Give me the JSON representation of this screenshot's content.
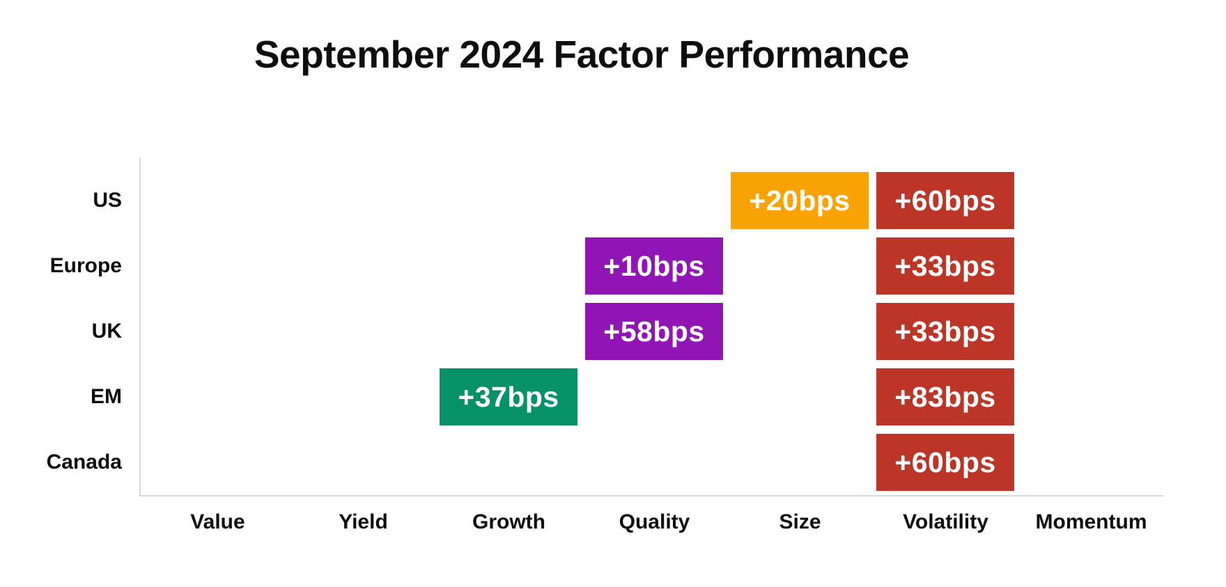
{
  "title": "September 2024 Factor Performance",
  "colors": {
    "orange": "#FAA307",
    "red": "#BD3526",
    "purple": "#9115B5",
    "green": "#069167",
    "axis": "#D9D9D9",
    "label_text": "#0E0E0E",
    "cell_text": "#FFFFFF",
    "background": "#FFFFFF"
  },
  "chart_data": {
    "type": "heatmap",
    "title": "September 2024 Factor Performance",
    "rows": [
      "US",
      "Europe",
      "UK",
      "EM",
      "Canada"
    ],
    "columns": [
      "Value",
      "Yield",
      "Growth",
      "Quality",
      "Size",
      "Volatility",
      "Momentum"
    ],
    "cells": [
      {
        "row": "US",
        "column": "Size",
        "label": "+20bps",
        "value_bps": 20,
        "color": "#FAA307"
      },
      {
        "row": "US",
        "column": "Volatility",
        "label": "+60bps",
        "value_bps": 60,
        "color": "#BD3526"
      },
      {
        "row": "Europe",
        "column": "Quality",
        "label": "+10bps",
        "value_bps": 10,
        "color": "#9115B5"
      },
      {
        "row": "Europe",
        "column": "Volatility",
        "label": "+33bps",
        "value_bps": 33,
        "color": "#BD3526"
      },
      {
        "row": "UK",
        "column": "Quality",
        "label": "+58bps",
        "value_bps": 58,
        "color": "#9115B5"
      },
      {
        "row": "UK",
        "column": "Volatility",
        "label": "+33bps",
        "value_bps": 33,
        "color": "#BD3526"
      },
      {
        "row": "EM",
        "column": "Growth",
        "label": "+37bps",
        "value_bps": 37,
        "color": "#069167"
      },
      {
        "row": "EM",
        "column": "Volatility",
        "label": "+83bps",
        "value_bps": 83,
        "color": "#BD3526"
      },
      {
        "row": "Canada",
        "column": "Volatility",
        "label": "+60bps",
        "value_bps": 60,
        "color": "#BD3526"
      }
    ],
    "legend": false,
    "grid": false,
    "axis": {
      "x_axis_shown": true,
      "y_axis_shown": true,
      "tick_marks": false
    }
  }
}
